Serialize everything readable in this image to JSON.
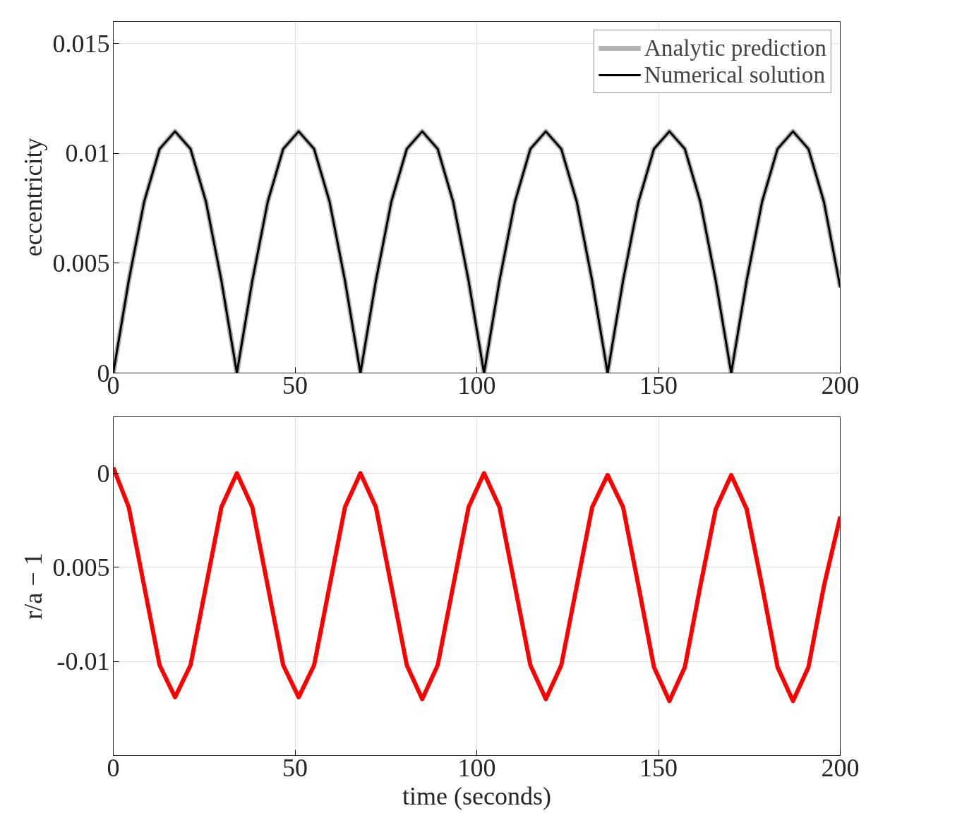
{
  "chart_data": [
    {
      "type": "line",
      "ylabel": "eccentricity",
      "x": [
        0,
        4.25,
        8.5,
        12.75,
        17,
        21.25,
        25.5,
        29.75,
        34,
        38.25,
        42.5,
        46.75,
        51,
        55.25,
        59.5,
        63.75,
        68,
        72.25,
        76.5,
        80.75,
        85,
        89.25,
        93.5,
        97.75,
        102,
        106.25,
        110.5,
        114.75,
        119,
        123.25,
        127.5,
        131.75,
        136,
        140.25,
        144.5,
        148.75,
        153,
        157.25,
        161.5,
        165.75,
        170,
        174.25,
        178.5,
        182.75,
        187,
        191.25,
        195.5,
        200
      ],
      "series": [
        {
          "name": "Analytic prediction",
          "color": "#b3b3b3",
          "values": [
            0,
            0.0042,
            0.0078,
            0.0102,
            0.011,
            0.0102,
            0.0078,
            0.0042,
            0,
            0.0042,
            0.0078,
            0.0102,
            0.011,
            0.0102,
            0.0078,
            0.0042,
            0,
            0.0042,
            0.0078,
            0.0102,
            0.011,
            0.0102,
            0.0078,
            0.0042,
            0,
            0.0042,
            0.0078,
            0.0102,
            0.011,
            0.0102,
            0.0078,
            0.0042,
            0,
            0.0042,
            0.0078,
            0.0102,
            0.011,
            0.0102,
            0.0078,
            0.0042,
            0,
            0.0042,
            0.0078,
            0.0102,
            0.011,
            0.0102,
            0.0078,
            0.0039
          ]
        },
        {
          "name": "Numerical solution",
          "color": "#000000",
          "values": [
            0,
            0.0042,
            0.0078,
            0.0102,
            0.011,
            0.0102,
            0.0078,
            0.0042,
            0,
            0.0042,
            0.0078,
            0.0102,
            0.011,
            0.0102,
            0.0078,
            0.0042,
            0,
            0.0042,
            0.0078,
            0.0102,
            0.011,
            0.0102,
            0.0078,
            0.0042,
            0,
            0.0042,
            0.0078,
            0.0102,
            0.011,
            0.0102,
            0.0078,
            0.0042,
            0,
            0.0042,
            0.0078,
            0.0102,
            0.011,
            0.0102,
            0.0078,
            0.0042,
            0,
            0.0042,
            0.0078,
            0.0102,
            0.011,
            0.0102,
            0.0078,
            0.0039
          ]
        }
      ],
      "xlim": [
        0,
        200
      ],
      "xticks": [
        0,
        50,
        100,
        150,
        200
      ],
      "ylim": [
        0,
        0.016
      ],
      "yticks": [
        0,
        0.005,
        0.01,
        0.015
      ],
      "grid": true,
      "legend": "top right"
    },
    {
      "type": "line",
      "xlabel": "time (seconds)",
      "ylabel": "r/a − 1",
      "x": [
        0,
        4.25,
        8.5,
        12.75,
        17,
        21.25,
        25.5,
        29.75,
        34,
        38.25,
        42.5,
        46.75,
        51,
        55.25,
        59.5,
        63.75,
        68,
        72.25,
        76.5,
        80.75,
        85,
        89.25,
        93.5,
        97.75,
        102,
        106.25,
        110.5,
        114.75,
        119,
        123.25,
        127.5,
        131.75,
        136,
        140.25,
        144.5,
        148.75,
        153,
        157.25,
        161.5,
        165.75,
        170,
        174.25,
        178.5,
        182.75,
        187,
        191.25,
        195.5,
        200
      ],
      "series": [
        {
          "color": "#ff0000",
          "values": [
            0.0003,
            -0.0018,
            -0.006,
            -0.0102,
            -0.0119,
            -0.0102,
            -0.006,
            -0.0018,
            0,
            -0.0018,
            -0.006,
            -0.0102,
            -0.0119,
            -0.0102,
            -0.006,
            -0.0018,
            0,
            -0.0018,
            -0.006,
            -0.0102,
            -0.012,
            -0.0102,
            -0.006,
            -0.0018,
            0,
            -0.0018,
            -0.006,
            -0.0102,
            -0.012,
            -0.0102,
            -0.006,
            -0.0018,
            -0.0001,
            -0.0018,
            -0.006,
            -0.0103,
            -0.0121,
            -0.0103,
            -0.006,
            -0.0019,
            -0.0001,
            -0.0019,
            -0.006,
            -0.0103,
            -0.0121,
            -0.0103,
            -0.006,
            -0.0023
          ]
        }
      ],
      "xlim": [
        0,
        200
      ],
      "xticks": [
        0,
        50,
        100,
        150,
        200
      ],
      "ylim": [
        -0.015,
        0.003
      ],
      "yticks": [
        0,
        {
          "value": -0.005,
          "label": "0.005"
        },
        -0.01
      ],
      "grid": true
    }
  ]
}
